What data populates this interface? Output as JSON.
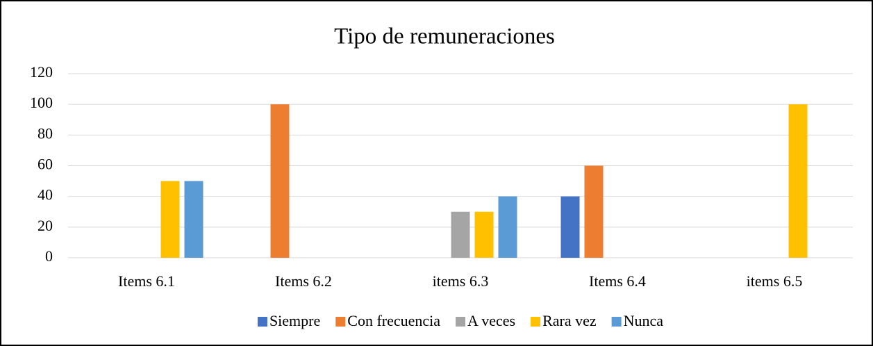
{
  "chart_data": {
    "type": "bar",
    "title": "Tipo de remuneraciones",
    "categories": [
      "Items 6.1",
      "Items 6.2",
      "items 6.3",
      "Items 6.4",
      "items 6.5"
    ],
    "series": [
      {
        "name": "Siempre",
        "color": "#4472c4",
        "values": [
          0,
          0,
          0,
          40,
          0
        ]
      },
      {
        "name": "Con frecuencia",
        "color": "#ed7d31",
        "values": [
          0,
          100,
          0,
          60,
          0
        ]
      },
      {
        "name": "A veces",
        "color": "#a5a5a5",
        "values": [
          0,
          0,
          30,
          0,
          0
        ]
      },
      {
        "name": "Rara vez",
        "color": "#ffc000",
        "values": [
          50,
          0,
          30,
          0,
          100
        ]
      },
      {
        "name": "Nunca",
        "color": "#5b9bd5",
        "values": [
          50,
          0,
          40,
          0,
          0
        ]
      }
    ],
    "ylim": [
      0,
      120
    ],
    "yticks": [
      0,
      20,
      40,
      60,
      80,
      100,
      120
    ],
    "grid": true,
    "legend": "bottom"
  }
}
